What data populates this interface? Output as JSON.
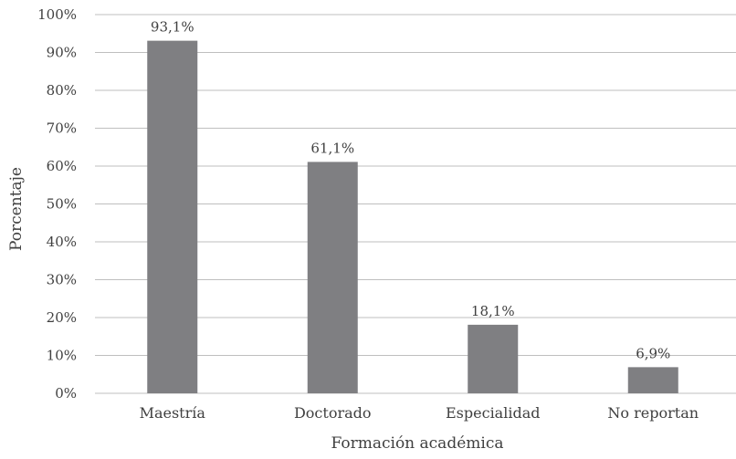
{
  "chart_data": {
    "type": "bar",
    "categories": [
      "Maestría",
      "Doctorado",
      "Especialidad",
      "No reportan"
    ],
    "values": [
      93.1,
      61.1,
      18.1,
      6.9
    ],
    "data_labels": [
      "93,1%",
      "61,1%",
      "18,1%",
      "6,9%"
    ],
    "title": "",
    "xlabel": "Formación académica",
    "ylabel": "Porcentaje",
    "ylim": [
      0,
      100
    ],
    "yticks": [
      0,
      10,
      20,
      30,
      40,
      50,
      60,
      70,
      80,
      90,
      100
    ],
    "ytick_labels": [
      "0%",
      "10%",
      "20%",
      "30%",
      "40%",
      "50%",
      "60%",
      "70%",
      "80%",
      "90%",
      "100%"
    ],
    "grid": true,
    "legend": "none",
    "colors": {
      "bar": "#7f7f82",
      "grid": "#bfbfbf",
      "text": "#404040"
    }
  }
}
